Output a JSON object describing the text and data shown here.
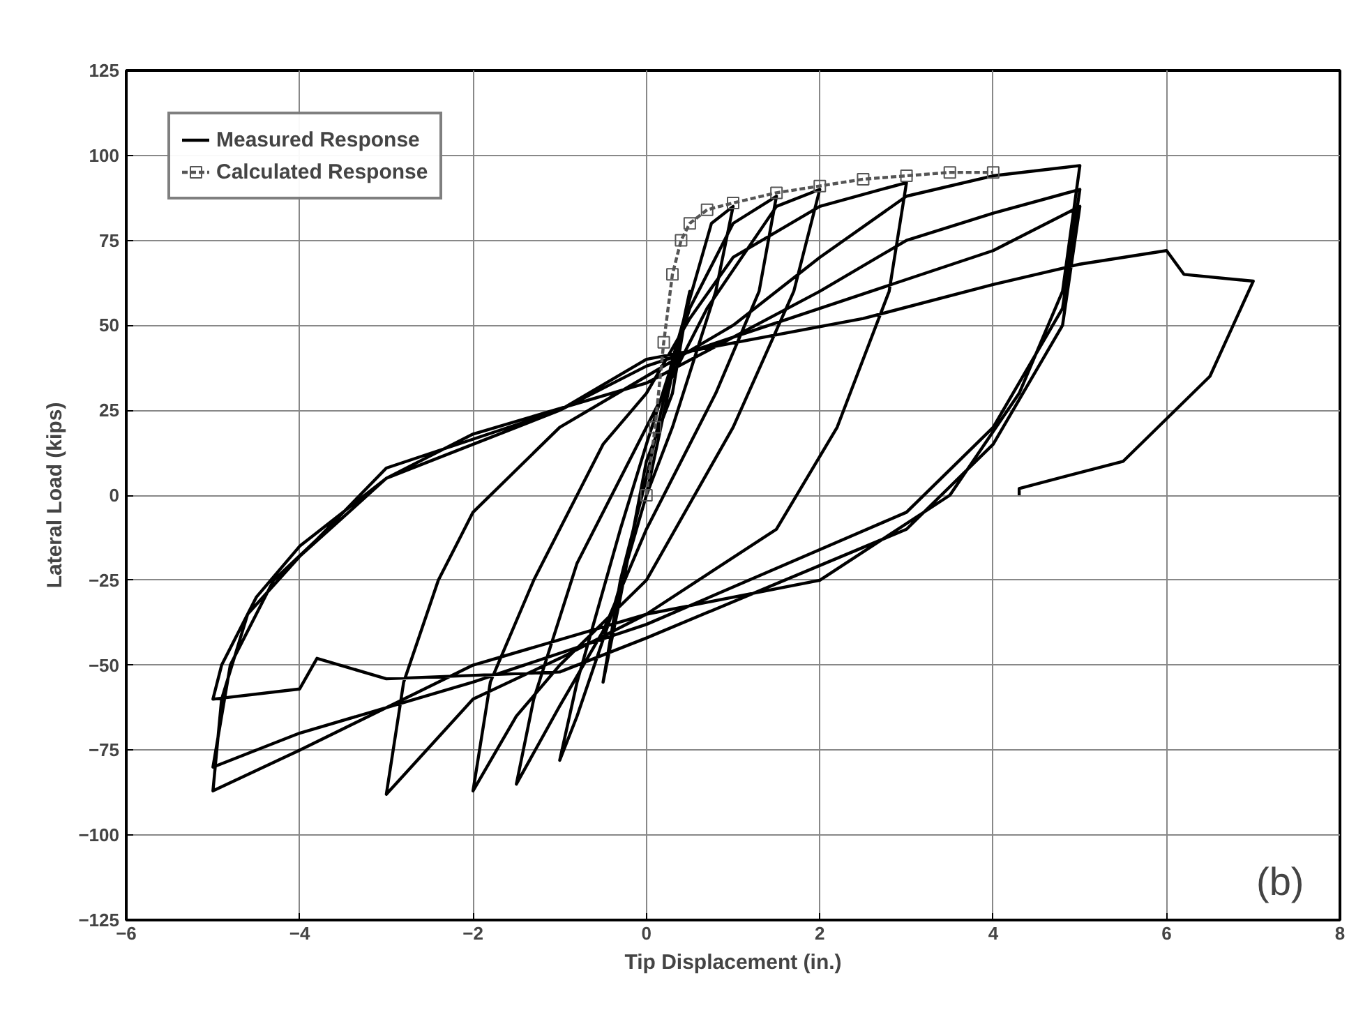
{
  "chart_data": {
    "type": "line",
    "xlabel": "Tip Displacement (in.)",
    "ylabel": "Lateral Load (kips)",
    "xlim": [
      -6,
      8
    ],
    "xticks": [
      -6,
      -4,
      -2,
      0,
      2,
      4,
      6,
      8
    ],
    "ylim": [
      -125,
      125
    ],
    "yticks": [
      -125,
      -100,
      -75,
      -50,
      -25,
      0,
      25,
      50,
      75,
      100,
      125
    ],
    "grid": true,
    "legend": "top left",
    "annotations": [
      "(b)"
    ],
    "series": [
      {
        "name": "Measured Response",
        "color": "#000000",
        "marker": "none",
        "line_style": "solid",
        "x": [
          0,
          0.5,
          0.3,
          0,
          -0.3,
          -0.5,
          -0.3,
          0,
          0.3,
          0.75,
          1,
          0.8,
          0.3,
          0,
          -0.4,
          -0.8,
          -1,
          -0.8,
          -0.3,
          0,
          0.5,
          1,
          1.5,
          1.3,
          0.8,
          0,
          -0.5,
          -1,
          -1.5,
          -1.3,
          -0.8,
          0,
          0.7,
          1.5,
          2,
          1.7,
          1,
          0,
          -1,
          -1.5,
          -2,
          -1.8,
          -1.3,
          -0.5,
          0,
          0.5,
          1,
          2,
          3,
          2.8,
          2.2,
          1.5,
          0,
          -1,
          -2,
          -3,
          -2.8,
          -2.4,
          -2,
          -1,
          0,
          1,
          2,
          3,
          4,
          5,
          4.8,
          4.3,
          3.5,
          2,
          0,
          -2,
          -4,
          -5,
          -4.9,
          -4.6,
          -4,
          -3,
          -2,
          0,
          2,
          3,
          4,
          5,
          4.8,
          4,
          3,
          0,
          -2,
          -4,
          -5,
          -4.8,
          -4.3,
          -3.8,
          -3,
          -1,
          0,
          2,
          4,
          5,
          4.8,
          4,
          3,
          0,
          -1,
          -3,
          -3.8,
          -4,
          -5,
          -4.9,
          -4.5,
          -4,
          -3,
          -1,
          0,
          2.5,
          4,
          5,
          6,
          6.2,
          7,
          6.5,
          5.5,
          4.3,
          4.3
        ],
        "values": [
          0,
          60,
          30,
          10,
          -30,
          -55,
          -25,
          5,
          40,
          80,
          85,
          60,
          20,
          0,
          -35,
          -65,
          -78,
          -55,
          -10,
          15,
          55,
          80,
          88,
          60,
          30,
          -10,
          -40,
          -62,
          -85,
          -60,
          -20,
          20,
          55,
          85,
          90,
          60,
          20,
          -25,
          -50,
          -65,
          -87,
          -55,
          -25,
          15,
          30,
          52,
          70,
          85,
          92,
          60,
          20,
          -10,
          -35,
          -48,
          -60,
          -88,
          -55,
          -25,
          -5,
          20,
          35,
          50,
          70,
          88,
          94,
          97,
          60,
          30,
          0,
          -25,
          -35,
          -50,
          -75,
          -87,
          -60,
          -35,
          -18,
          5,
          18,
          33,
          60,
          75,
          83,
          90,
          55,
          20,
          -5,
          -38,
          -55,
          -70,
          -80,
          -50,
          -25,
          -13,
          8,
          25,
          38,
          55,
          72,
          85,
          50,
          15,
          -10,
          -42,
          -52,
          -54,
          -48,
          -57,
          -60,
          -50,
          -30,
          -15,
          5,
          25,
          40,
          52,
          62,
          68,
          72,
          65,
          63,
          35,
          10,
          2,
          0
        ]
      },
      {
        "name": "Calculated Response",
        "color": "#555555",
        "marker": "square",
        "line_style": "dashed",
        "x": [
          0,
          0.1,
          0.2,
          0.3,
          0.4,
          0.5,
          0.7,
          1,
          1.5,
          2,
          2.5,
          3,
          3.5,
          4
        ],
        "values": [
          0,
          20,
          45,
          65,
          75,
          80,
          84,
          86,
          89,
          91,
          93,
          94,
          95,
          95
        ]
      }
    ]
  }
}
